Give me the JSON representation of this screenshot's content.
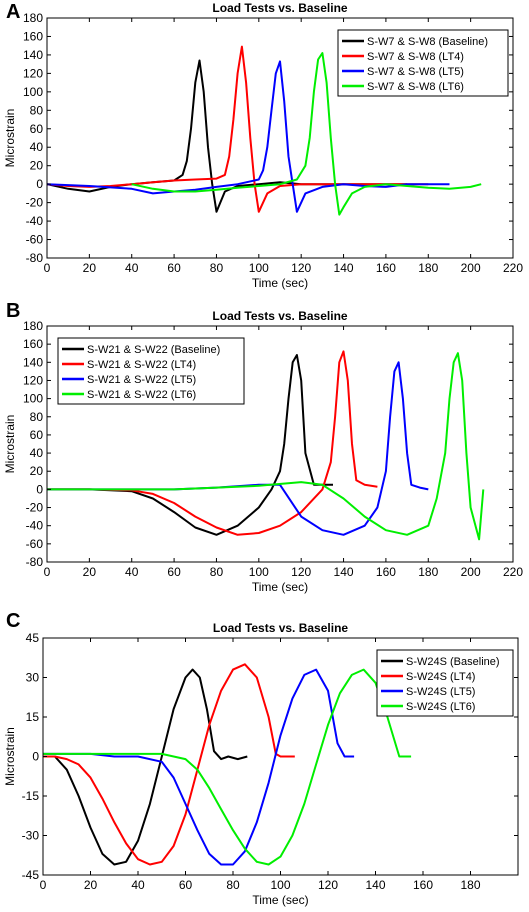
{
  "panels": [
    {
      "letter": "A"
    },
    {
      "letter": "B"
    },
    {
      "letter": "C"
    }
  ],
  "chart_data": [
    {
      "type": "line",
      "title": "Load Tests vs. Baseline",
      "xlabel": "Time (sec)",
      "ylabel": "Microstrain",
      "xlim": [
        0,
        220
      ],
      "ylim": [
        -80,
        180
      ],
      "xticks": [
        0,
        20,
        40,
        60,
        80,
        100,
        120,
        140,
        160,
        180,
        200,
        220
      ],
      "yticks": [
        -80,
        -60,
        -40,
        -20,
        0,
        20,
        40,
        60,
        80,
        100,
        120,
        140,
        160,
        180
      ],
      "grid": false,
      "legend_position": "top-right",
      "series": [
        {
          "name": "S-W7 & S-W8 (Baseline)",
          "color": "#000000",
          "x": [
            0,
            10,
            20,
            30,
            40,
            50,
            60,
            64,
            66,
            68,
            70,
            72,
            74,
            76,
            78,
            80,
            84,
            90,
            100,
            110,
            120,
            130,
            140,
            150,
            160,
            170
          ],
          "y": [
            0,
            -5,
            -8,
            -3,
            0,
            2,
            4,
            10,
            25,
            60,
            110,
            134,
            100,
            40,
            0,
            -30,
            -8,
            -2,
            0,
            2,
            0,
            0,
            0,
            0,
            0,
            0
          ]
        },
        {
          "name": "S-W7 & S-W8 (LT4)",
          "color": "#ff0000",
          "x": [
            0,
            10,
            20,
            30,
            40,
            50,
            60,
            70,
            80,
            84,
            86,
            88,
            90,
            92,
            94,
            96,
            98,
            100,
            104,
            110,
            120,
            130,
            140,
            150,
            160,
            170,
            180
          ],
          "y": [
            0,
            -2,
            -3,
            -2,
            0,
            2,
            4,
            5,
            6,
            10,
            30,
            70,
            120,
            149,
            110,
            50,
            0,
            -30,
            -10,
            -2,
            0,
            0,
            0,
            0,
            0,
            0,
            0
          ]
        },
        {
          "name": "S-W7 & S-W8 (LT5)",
          "color": "#0000ff",
          "x": [
            0,
            20,
            40,
            50,
            60,
            70,
            80,
            90,
            100,
            102,
            104,
            106,
            108,
            110,
            112,
            114,
            116,
            118,
            122,
            130,
            140,
            150,
            160,
            170,
            180,
            190
          ],
          "y": [
            0,
            -2,
            -5,
            -10,
            -8,
            -6,
            -3,
            0,
            5,
            15,
            40,
            80,
            120,
            133,
            90,
            30,
            0,
            -30,
            -10,
            -3,
            0,
            -2,
            -3,
            0,
            0,
            0
          ]
        },
        {
          "name": "S-W7 & S-W8 (LT6)",
          "color": "#00ee00",
          "x": [
            40,
            50,
            60,
            70,
            80,
            90,
            100,
            110,
            118,
            122,
            124,
            126,
            128,
            130,
            132,
            134,
            136,
            138,
            140,
            144,
            150,
            160,
            170,
            180,
            190,
            200,
            205
          ],
          "y": [
            0,
            -5,
            -8,
            -8,
            -6,
            -4,
            -2,
            0,
            5,
            20,
            50,
            100,
            135,
            142,
            110,
            50,
            0,
            -33,
            -25,
            -10,
            -3,
            0,
            -2,
            -4,
            -5,
            -3,
            0
          ]
        }
      ]
    },
    {
      "type": "line",
      "title": "Load Tests vs. Baseline",
      "xlabel": "Time (sec)",
      "ylabel": "Microstrain",
      "xlim": [
        0,
        220
      ],
      "ylim": [
        -80,
        180
      ],
      "xticks": [
        0,
        20,
        40,
        60,
        80,
        100,
        120,
        140,
        160,
        180,
        200,
        220
      ],
      "yticks": [
        -80,
        -60,
        -40,
        -20,
        0,
        20,
        40,
        60,
        80,
        100,
        120,
        140,
        160,
        180
      ],
      "grid": false,
      "legend_position": "top-left",
      "series": [
        {
          "name": "S-W21 & S-W22 (Baseline)",
          "color": "#000000",
          "x": [
            0,
            20,
            40,
            50,
            60,
            70,
            80,
            90,
            100,
            106,
            110,
            112,
            114,
            116,
            118,
            120,
            122,
            126,
            130,
            135
          ],
          "y": [
            0,
            0,
            -2,
            -10,
            -25,
            -42,
            -50,
            -40,
            -20,
            0,
            20,
            50,
            100,
            140,
            148,
            120,
            40,
            5,
            5,
            5
          ]
        },
        {
          "name": "S-W21 & S-W22 (LT4)",
          "color": "#ff0000",
          "x": [
            0,
            20,
            40,
            50,
            60,
            70,
            80,
            90,
            100,
            110,
            120,
            130,
            134,
            136,
            138,
            140,
            142,
            144,
            146,
            150,
            156
          ],
          "y": [
            0,
            0,
            -1,
            -5,
            -15,
            -30,
            -42,
            -50,
            -48,
            -40,
            -25,
            0,
            30,
            80,
            140,
            152,
            120,
            50,
            10,
            5,
            3
          ]
        },
        {
          "name": "S-W21 & S-W22 (LT5)",
          "color": "#0000ff",
          "x": [
            0,
            20,
            40,
            60,
            80,
            100,
            110,
            120,
            130,
            140,
            150,
            156,
            160,
            162,
            164,
            166,
            168,
            170,
            172,
            176,
            180
          ],
          "y": [
            0,
            0,
            0,
            0,
            2,
            5,
            5,
            -30,
            -45,
            -50,
            -40,
            -20,
            20,
            80,
            130,
            140,
            100,
            40,
            5,
            2,
            0
          ]
        },
        {
          "name": "S-W21 & S-W22 (LT6)",
          "color": "#00ee00",
          "x": [
            0,
            20,
            40,
            60,
            80,
            100,
            120,
            130,
            140,
            150,
            160,
            170,
            180,
            184,
            188,
            190,
            192,
            194,
            196,
            198,
            200,
            204,
            206
          ],
          "y": [
            0,
            0,
            0,
            0,
            2,
            4,
            8,
            5,
            -10,
            -30,
            -45,
            -50,
            -40,
            -10,
            40,
            100,
            140,
            150,
            120,
            40,
            -20,
            -55,
            0
          ]
        }
      ]
    },
    {
      "type": "line",
      "title": "Load Tests vs. Baseline",
      "xlabel": "Time (sec)",
      "ylabel": "Microstrain",
      "xlim": [
        0,
        200
      ],
      "ylim": [
        -45,
        45
      ],
      "xticks": [
        0,
        20,
        40,
        60,
        80,
        100,
        120,
        140,
        160,
        180
      ],
      "yticks": [
        -45,
        -30,
        -15,
        0,
        15,
        30,
        45
      ],
      "grid": false,
      "legend_position": "top-right",
      "series": [
        {
          "name": "S-W24S (Baseline)",
          "color": "#000000",
          "x": [
            0,
            5,
            10,
            15,
            20,
            25,
            30,
            35,
            40,
            45,
            50,
            55,
            60,
            63,
            66,
            69,
            72,
            75,
            78,
            82,
            86
          ],
          "y": [
            0,
            0,
            -5,
            -15,
            -27,
            -37,
            -41,
            -40,
            -32,
            -18,
            0,
            18,
            30,
            33,
            30,
            18,
            2,
            -1,
            0,
            -1,
            0
          ]
        },
        {
          "name": "S-W24S (LT4)",
          "color": "#ff0000",
          "x": [
            0,
            5,
            10,
            15,
            20,
            25,
            30,
            35,
            40,
            45,
            50,
            55,
            60,
            65,
            70,
            75,
            80,
            85,
            90,
            95,
            98,
            100,
            106
          ],
          "y": [
            0,
            0,
            -1,
            -3,
            -8,
            -16,
            -25,
            -33,
            -39,
            -41,
            -40,
            -34,
            -22,
            -5,
            12,
            25,
            33,
            35,
            30,
            15,
            1,
            0,
            0
          ]
        },
        {
          "name": "S-W24S (LT5)",
          "color": "#0000ff",
          "x": [
            0,
            10,
            20,
            30,
            40,
            50,
            55,
            60,
            65,
            70,
            75,
            80,
            85,
            90,
            95,
            100,
            105,
            110,
            115,
            120,
            124,
            127,
            131
          ],
          "y": [
            1,
            1,
            1,
            0,
            0,
            -2,
            -8,
            -18,
            -28,
            -37,
            -41,
            -41,
            -36,
            -25,
            -10,
            8,
            22,
            31,
            33,
            25,
            5,
            0,
            0
          ]
        },
        {
          "name": "S-W24S (LT6)",
          "color": "#00ee00",
          "x": [
            0,
            10,
            20,
            30,
            40,
            50,
            60,
            65,
            70,
            75,
            80,
            85,
            90,
            95,
            100,
            105,
            110,
            115,
            120,
            125,
            130,
            135,
            140,
            145,
            150,
            155
          ],
          "y": [
            1,
            1,
            1,
            1,
            1,
            1,
            -1,
            -5,
            -12,
            -20,
            -28,
            -35,
            -40,
            -41,
            -38,
            -30,
            -18,
            -3,
            12,
            24,
            31,
            33,
            28,
            15,
            0,
            0
          ]
        }
      ]
    }
  ]
}
